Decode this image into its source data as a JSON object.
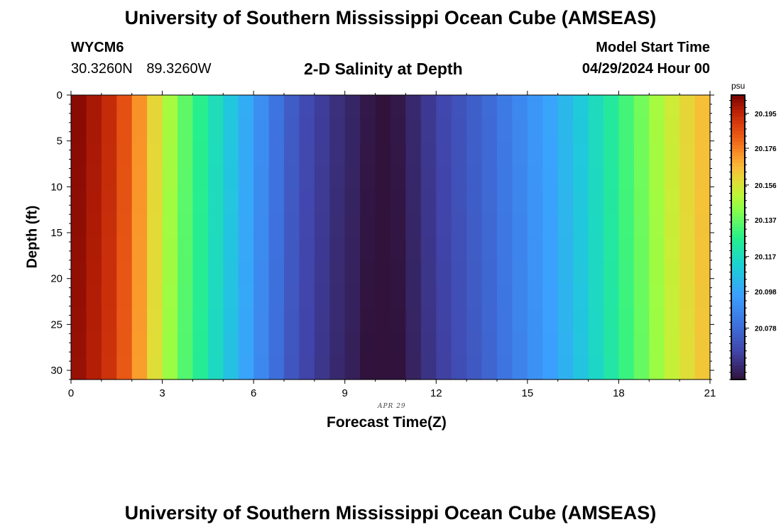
{
  "header": {
    "title": "University of Southern Mississippi Ocean Cube (AMSEAS)",
    "station_id": "WYCM6",
    "lat": "30.3260N",
    "lon": "89.3260W",
    "subtitle": "2-D Salinity at Depth",
    "model_start_label": "Model Start Time",
    "model_start_value": "04/29/2024 Hour 00"
  },
  "footer": {
    "title": "University of Southern Mississippi Ocean Cube (AMSEAS)"
  },
  "chart_data": {
    "type": "heatmap",
    "title": "2-D Salinity at Depth",
    "xlabel": "Forecast Time(Z)",
    "ylabel": "Depth (ft)",
    "date_label": "APR 29",
    "xlim": [
      0,
      21
    ],
    "ylim": [
      0,
      31
    ],
    "xticks": [
      0,
      3,
      6,
      9,
      12,
      15,
      18,
      21
    ],
    "yticks": [
      0,
      5,
      10,
      15,
      20,
      25,
      30
    ],
    "x_hours": [
      0,
      0.5,
      1,
      1.5,
      2,
      2.5,
      3,
      3.5,
      4,
      4.5,
      5,
      5.5,
      6,
      6.5,
      7,
      7.5,
      8,
      8.5,
      9,
      9.5,
      10,
      10.5,
      11,
      11.5,
      12,
      12.5,
      13,
      13.5,
      14,
      14.5,
      15,
      15.5,
      16,
      16.5,
      17,
      17.5,
      18,
      18.5,
      19,
      19.5,
      20,
      20.5
    ],
    "salinity_psu": [
      20.203,
      20.199,
      20.194,
      20.185,
      20.173,
      20.16,
      20.147,
      20.136,
      20.127,
      20.118,
      20.109,
      20.1,
      20.09,
      20.081,
      20.073,
      20.067,
      20.063,
      20.059,
      20.056,
      20.052,
      20.048,
      20.052,
      20.057,
      20.062,
      20.066,
      20.07,
      20.074,
      20.078,
      20.083,
      20.088,
      20.093,
      20.098,
      20.104,
      20.11,
      20.117,
      20.124,
      20.132,
      20.139,
      20.147,
      20.154,
      20.16,
      20.165
    ],
    "colorbar": {
      "label": "psu",
      "min": 20.05,
      "max": 20.205,
      "ticks": [
        "20.195",
        "20.176",
        "20.156",
        "20.137",
        "20.117",
        "20.098",
        "20.078"
      ]
    }
  },
  "colors": {
    "background": "#ffffff",
    "axis": "#000000"
  }
}
